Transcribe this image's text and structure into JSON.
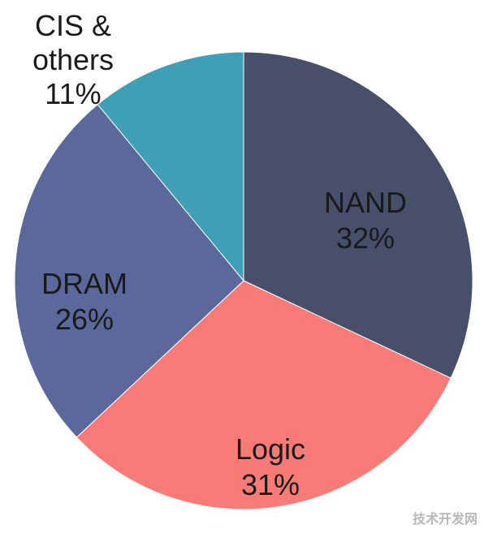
{
  "chart_data": {
    "type": "pie",
    "title": "",
    "slices": [
      {
        "label": [
          "NAND",
          "32%"
        ],
        "value": 32,
        "color": "#474f6b"
      },
      {
        "label": [
          "Logic",
          "31%"
        ],
        "value": 31,
        "color": "#f97b77"
      },
      {
        "label": [
          "DRAM",
          "26%"
        ],
        "value": 26,
        "color": "#5b689b"
      },
      {
        "label": [
          "CIS &",
          "others",
          "11%"
        ],
        "value": 11,
        "color": "#3f9fb7"
      }
    ],
    "start_angle_deg": 0,
    "direction": "clockwise",
    "legend": "none"
  },
  "watermark": "技术开发网"
}
